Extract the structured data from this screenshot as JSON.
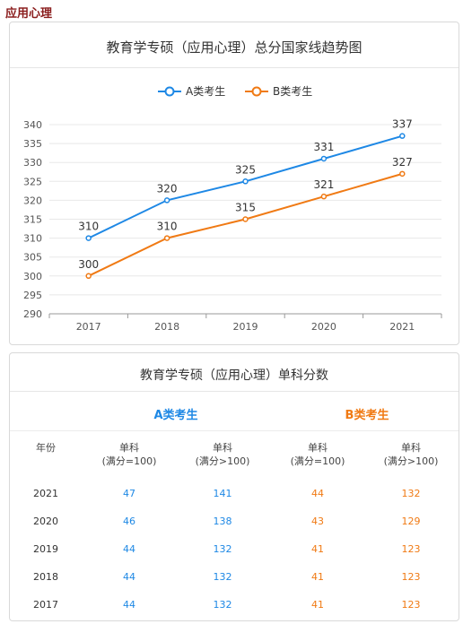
{
  "section_title": "应用心理",
  "chart_card": {
    "title": "教育学专硕（应用心理）总分国家线趋势图"
  },
  "chart_data": {
    "type": "line",
    "title": "教育学专硕（应用心理）总分国家线趋势图",
    "categories": [
      "2017",
      "2018",
      "2019",
      "2020",
      "2021"
    ],
    "series": [
      {
        "name": "A类考生",
        "color": "#1e88e5",
        "values": [
          310,
          320,
          325,
          331,
          337
        ]
      },
      {
        "name": "B类考生",
        "color": "#f07a14",
        "values": [
          300,
          310,
          315,
          321,
          327
        ]
      }
    ],
    "ylim": [
      290,
      340
    ],
    "yticks": [
      290,
      295,
      300,
      305,
      310,
      315,
      320,
      325,
      330,
      335,
      340
    ],
    "legend": "top-center",
    "grid": true,
    "xlabel": "",
    "ylabel": ""
  },
  "table_card": {
    "title": "教育学专硕（应用心理）单科分数",
    "group_a": "A类考生",
    "group_b": "B类考生",
    "headers": [
      {
        "line1": "年份",
        "line2": ""
      },
      {
        "line1": "单科",
        "line2": "(满分=100)"
      },
      {
        "line1": "单科",
        "line2": "(满分>100)"
      },
      {
        "line1": "单科",
        "line2": "(满分=100)"
      },
      {
        "line1": "单科",
        "line2": "(满分>100)"
      }
    ],
    "rows": [
      [
        "2021",
        "47",
        "141",
        "44",
        "132"
      ],
      [
        "2020",
        "46",
        "138",
        "43",
        "129"
      ],
      [
        "2019",
        "44",
        "132",
        "41",
        "123"
      ],
      [
        "2018",
        "44",
        "132",
        "41",
        "123"
      ],
      [
        "2017",
        "44",
        "132",
        "41",
        "123"
      ]
    ]
  }
}
